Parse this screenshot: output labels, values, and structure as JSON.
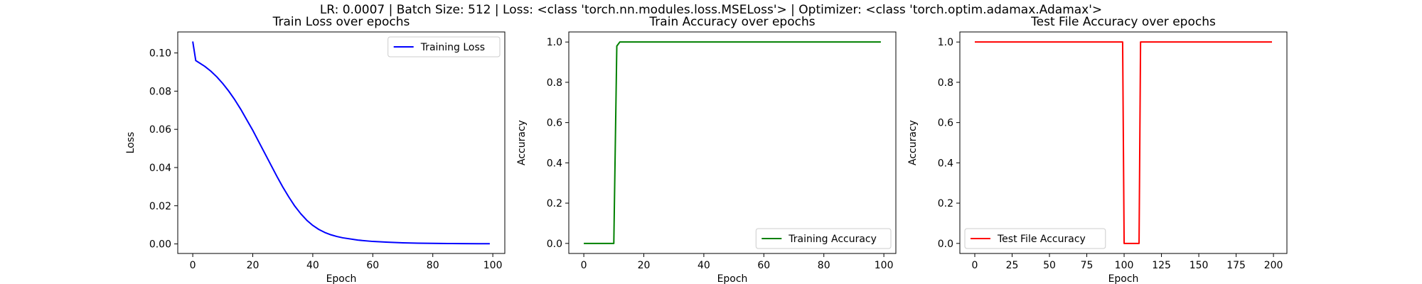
{
  "suptitle": "LR: 0.0007 | Batch Size: 512 | Loss: <class 'torch.nn.modules.loss.MSELoss'> | Optimizer: <class 'torch.optim.adamax.Adamax'>",
  "chart_data": [
    {
      "type": "line",
      "title": "Train Loss over epochs",
      "xlabel": "Epoch",
      "ylabel": "Loss",
      "xlim": [
        -5,
        104
      ],
      "ylim": [
        -0.005,
        0.111
      ],
      "xticks": [
        0,
        20,
        40,
        60,
        80,
        100
      ],
      "yticks": [
        0.0,
        0.02,
        0.04,
        0.06,
        0.08,
        0.1
      ],
      "ytick_labels": [
        "0.00",
        "0.02",
        "0.04",
        "0.06",
        "0.08",
        "0.10"
      ],
      "xtick_labels": [
        "0",
        "20",
        "40",
        "60",
        "80",
        "100"
      ],
      "legend_position": "upper right",
      "grid": false,
      "series": [
        {
          "name": "Training Loss",
          "color": "#0000ff",
          "x": [
            0,
            1,
            2,
            4,
            6,
            8,
            10,
            12,
            14,
            16,
            18,
            20,
            22,
            24,
            26,
            28,
            30,
            32,
            34,
            36,
            38,
            40,
            42,
            44,
            46,
            48,
            50,
            55,
            60,
            65,
            70,
            75,
            80,
            85,
            90,
            95,
            99
          ],
          "y": [
            0.106,
            0.096,
            0.095,
            0.093,
            0.0905,
            0.0875,
            0.084,
            0.08,
            0.0755,
            0.0705,
            0.065,
            0.0595,
            0.0535,
            0.0475,
            0.0415,
            0.0355,
            0.0298,
            0.0246,
            0.0198,
            0.0158,
            0.0124,
            0.0097,
            0.0076,
            0.006,
            0.0048,
            0.0039,
            0.0032,
            0.002,
            0.0013,
            0.0009,
            0.0006,
            0.0004,
            0.0003,
            0.0002,
            0.00015,
            0.0001,
            0.0001
          ]
        }
      ]
    },
    {
      "type": "line",
      "title": "Train Accuracy over epochs",
      "xlabel": "Epoch",
      "ylabel": "Accuracy",
      "xlim": [
        -5,
        104
      ],
      "ylim": [
        -0.05,
        1.05
      ],
      "xticks": [
        0,
        20,
        40,
        60,
        80,
        100
      ],
      "yticks": [
        0.0,
        0.2,
        0.4,
        0.6,
        0.8,
        1.0
      ],
      "xtick_labels": [
        "0",
        "20",
        "40",
        "60",
        "80",
        "100"
      ],
      "ytick_labels": [
        "0.0",
        "0.2",
        "0.4",
        "0.6",
        "0.8",
        "1.0"
      ],
      "legend_position": "lower right",
      "grid": false,
      "series": [
        {
          "name": "Training Accuracy",
          "color": "#008000",
          "x": [
            0,
            10,
            11,
            12,
            99
          ],
          "y": [
            0,
            0,
            0.98,
            1.0,
            1.0
          ]
        }
      ]
    },
    {
      "type": "line",
      "title": "Test File Accuracy over epochs",
      "xlabel": "Epoch",
      "ylabel": "Accuracy",
      "xlim": [
        -10,
        209
      ],
      "ylim": [
        -0.05,
        1.05
      ],
      "xticks": [
        0,
        25,
        50,
        75,
        100,
        125,
        150,
        175,
        200
      ],
      "yticks": [
        0.0,
        0.2,
        0.4,
        0.6,
        0.8,
        1.0
      ],
      "xtick_labels": [
        "0",
        "25",
        "50",
        "75",
        "100",
        "125",
        "150",
        "175",
        "200"
      ],
      "ytick_labels": [
        "0.0",
        "0.2",
        "0.4",
        "0.6",
        "0.8",
        "1.0"
      ],
      "legend_position": "lower left",
      "grid": false,
      "series": [
        {
          "name": "Test File Accuracy",
          "color": "#ff0000",
          "x": [
            0,
            99,
            100,
            110,
            111,
            199
          ],
          "y": [
            1.0,
            1.0,
            0.0,
            0.0,
            1.0,
            1.0
          ]
        }
      ]
    }
  ]
}
